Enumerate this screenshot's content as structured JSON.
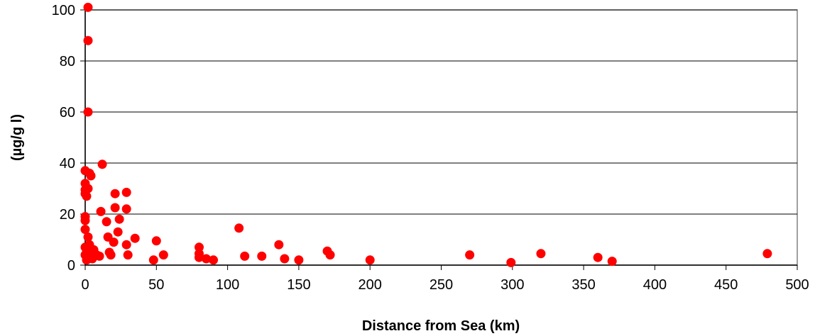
{
  "chart_data": {
    "type": "scatter",
    "title": "",
    "xlabel": "Distance from Sea (km)",
    "ylabel": "(µg/g l)",
    "xlim": [
      0,
      500
    ],
    "ylim": [
      0,
      100
    ],
    "x_ticks": [
      0,
      50,
      100,
      150,
      200,
      250,
      300,
      350,
      400,
      450,
      500
    ],
    "y_ticks": [
      0,
      20,
      40,
      60,
      80,
      100
    ],
    "x_tick_labels": [
      "0",
      "50",
      "100",
      "150",
      "200",
      "250",
      "300",
      "350",
      "400",
      "450",
      "500"
    ],
    "y_tick_labels": [
      "0",
      "20",
      "40",
      "60",
      "80",
      "100"
    ],
    "grid": "horizontal",
    "legend": "none",
    "marker_color": "#ff0000",
    "series": [
      {
        "x": [
          2,
          2,
          2,
          0,
          0,
          0,
          0,
          1,
          2,
          3,
          4,
          0,
          0,
          0,
          0,
          0,
          1,
          1,
          2,
          2,
          3,
          3,
          4,
          5,
          6,
          8,
          10,
          12,
          11,
          15,
          16,
          17,
          18,
          20,
          21,
          21,
          23,
          24,
          29,
          29,
          29,
          30,
          35,
          48,
          50,
          55,
          80,
          80,
          80,
          85,
          90,
          108,
          112,
          124,
          136,
          140,
          150,
          170,
          172,
          200,
          270,
          299,
          320,
          360,
          370,
          479
        ],
        "y": [
          101,
          88,
          60,
          37,
          32,
          29.5,
          28,
          27,
          30,
          36,
          35,
          19,
          17.5,
          14,
          7,
          4,
          2,
          5,
          7,
          11,
          8,
          3,
          5,
          2.5,
          6,
          4,
          3.5,
          39.5,
          21,
          17,
          11,
          5,
          4,
          9,
          22.5,
          28,
          13,
          18,
          8,
          22,
          28.5,
          4,
          10.5,
          2,
          9.5,
          4,
          7,
          4.5,
          3,
          2.5,
          2,
          14.5,
          3.5,
          3.5,
          8,
          2.5,
          2,
          5.5,
          4,
          2,
          4,
          1,
          4.5,
          3,
          1.5,
          4.5
        ]
      }
    ]
  }
}
